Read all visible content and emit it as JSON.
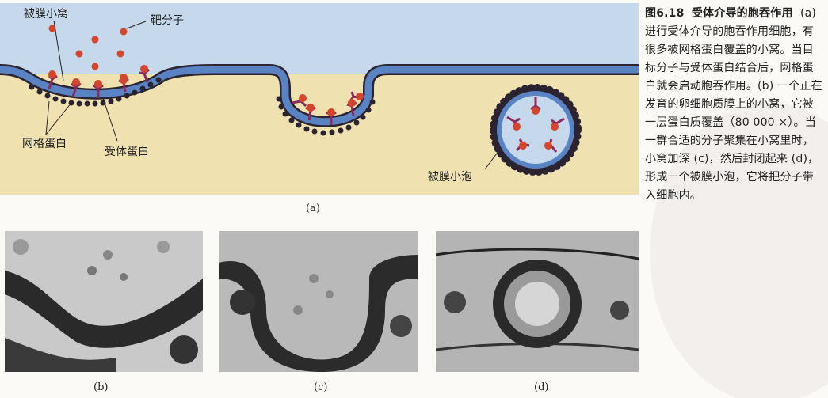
{
  "diagram": {
    "labels": {
      "coated_pit": "被膜小窝",
      "target_molecule": "靶分子",
      "clathrin": "网格蛋白",
      "receptor": "受体蛋白",
      "coated_vesicle": "被膜小泡"
    },
    "panel_a": "(a)"
  },
  "micrographs": {
    "b": "(b)",
    "c": "(c)",
    "d": "(d)"
  },
  "caption": {
    "figure_number": "图6.18",
    "title": "受体介导的胞吞作用",
    "body": "(a) 进行受体介导的胞吞作用细胞，有很多被网格蛋白覆盖的小窝。当目标分子与受体蛋白结合后，网格蛋白就会启动胞吞作用。(b) 一个正在发育的卵细胞质膜上的小窝，它被一层蛋白质覆盖（80 000 ×）。当一群合适的分子聚集在小窝里时，小窝加深 (c)，然后封闭起来 (d)，形成一个被膜小泡，它将把分子带入细胞内。"
  },
  "colors": {
    "extracellular": "#c6d9ec",
    "cytoplasm": "#efe2b0",
    "membrane": "#5a83c4",
    "clathrin": "#2b2430",
    "receptor": "#8c2a5e",
    "ligand": "#d3452c"
  }
}
